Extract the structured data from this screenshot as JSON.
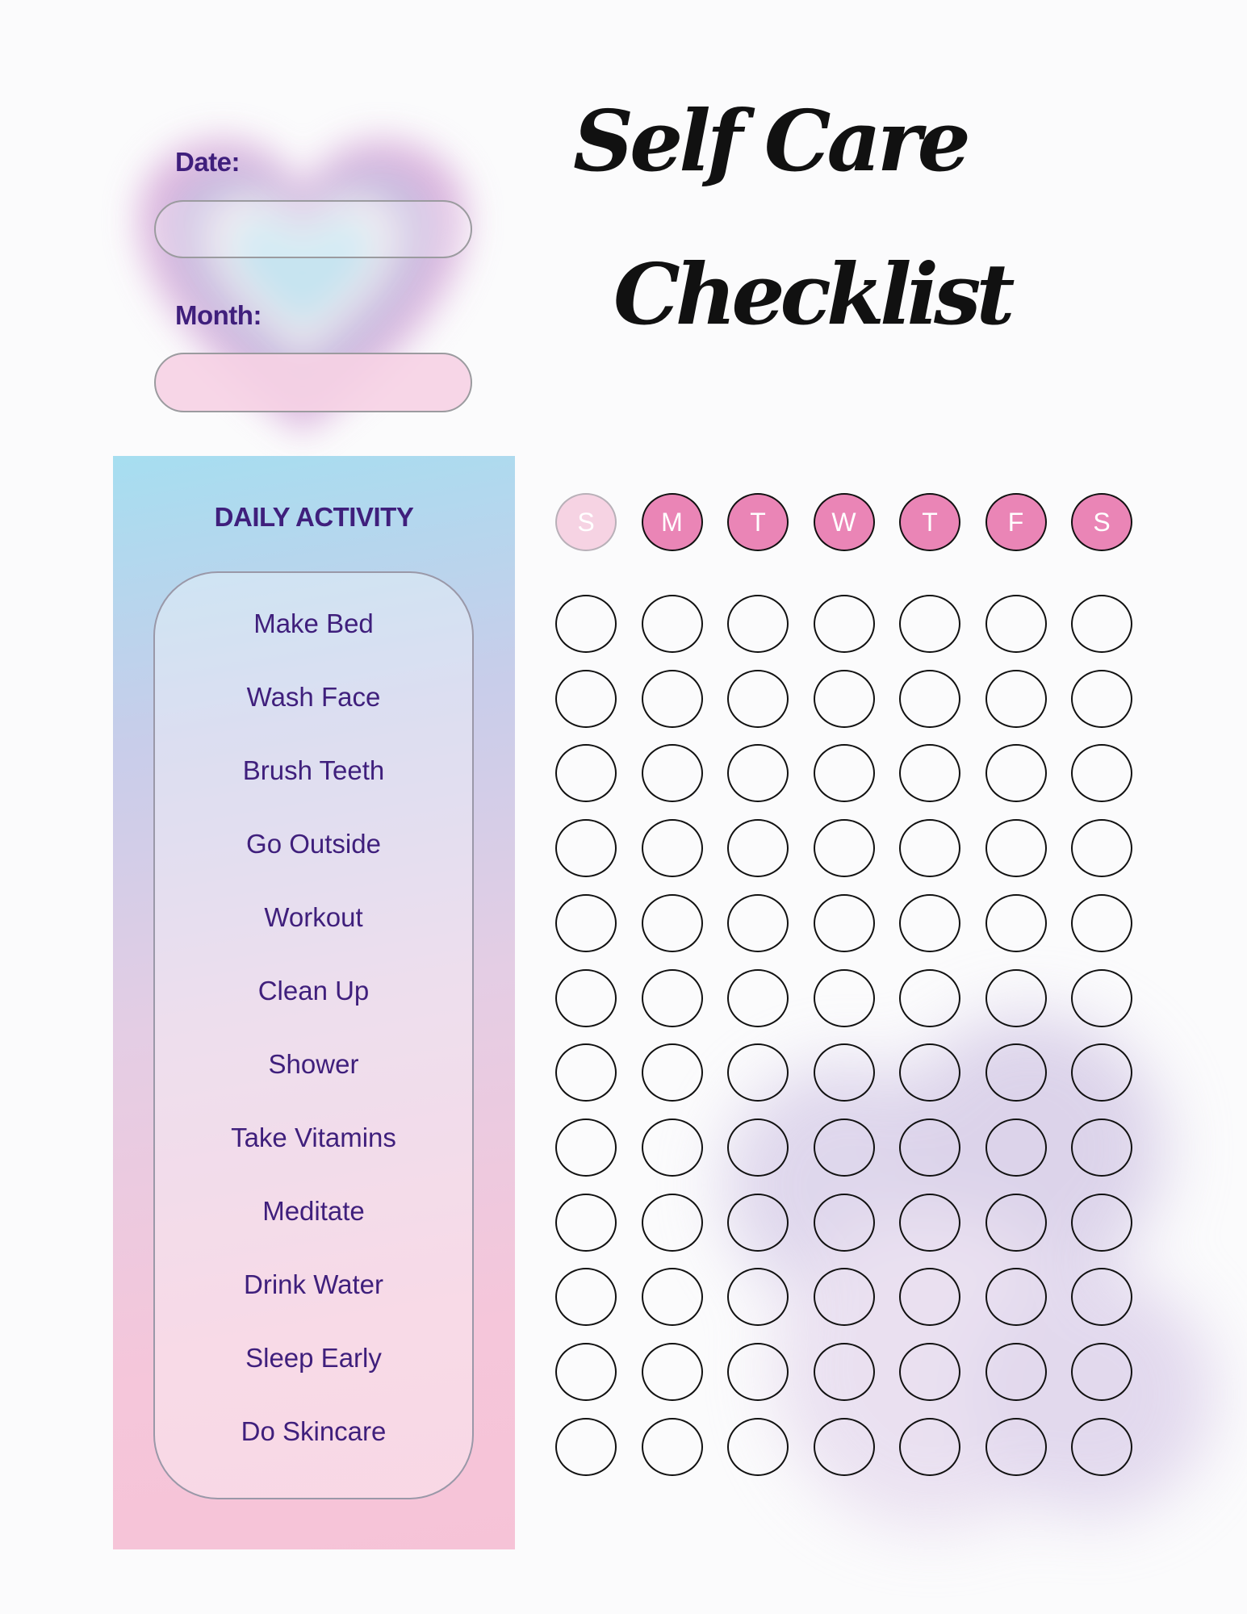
{
  "header": {
    "title_line1": "Self Care",
    "title_line2": "Checklist",
    "date_label": "Date:",
    "date_value": "",
    "month_label": "Month:",
    "month_value": ""
  },
  "activities": {
    "title": "DAILY ACTIVITY",
    "items": [
      "Make Bed",
      "Wash Face",
      "Brush Teeth",
      "Go Outside",
      "Workout",
      "Clean Up",
      "Shower",
      "Take Vitamins",
      "Meditate",
      "Drink Water",
      "Sleep Early",
      "Do Skincare"
    ]
  },
  "days": [
    {
      "label": "S",
      "muted": true
    },
    {
      "label": "M",
      "muted": false
    },
    {
      "label": "T",
      "muted": false
    },
    {
      "label": "W",
      "muted": false
    },
    {
      "label": "T",
      "muted": false
    },
    {
      "label": "F",
      "muted": false
    },
    {
      "label": "S",
      "muted": false
    }
  ],
  "colors": {
    "accent": "#ea85b6",
    "text": "#3f1f7c",
    "muted_day": "#f6d3e3"
  }
}
